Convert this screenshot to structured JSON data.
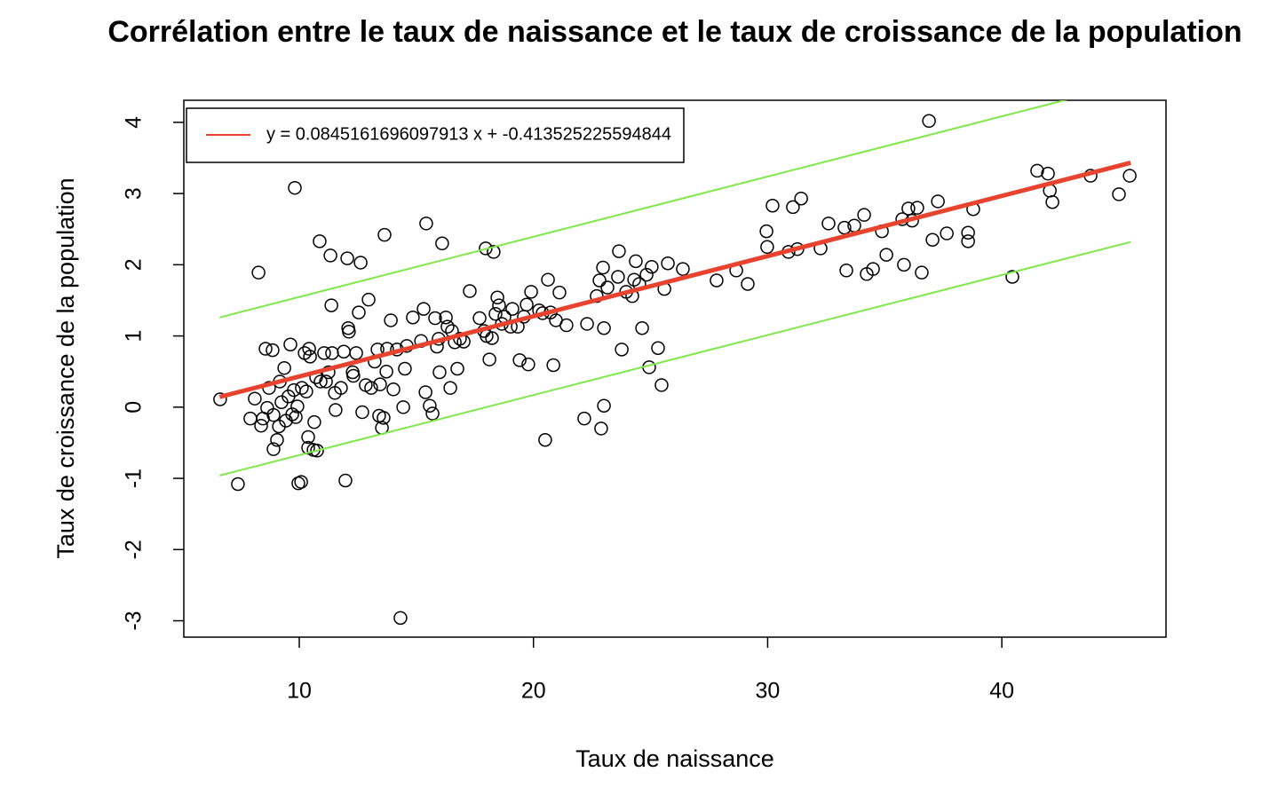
{
  "chart_data": {
    "type": "scatter",
    "title": "Corrélation entre le taux de naissance et le taux de croissance de la population",
    "xlabel": "Taux de naissance",
    "ylabel": "Taux de croissance de la population",
    "xlim": [
      5.07,
      47.01
    ],
    "ylim": [
      -3.23,
      4.31
    ],
    "xticks": [
      10,
      20,
      30,
      40
    ],
    "yticks": [
      -3,
      -2,
      -1,
      0,
      1,
      2,
      3,
      4
    ],
    "point_color": "#000000",
    "legend": "topleft",
    "x": [
      6.62,
      7.38,
      7.91,
      8.1,
      8.26,
      8.37,
      8.45,
      8.56,
      8.63,
      8.71,
      8.86,
      8.9,
      8.9,
      9.05,
      9.13,
      9.17,
      9.24,
      9.36,
      9.43,
      9.54,
      9.62,
      9.7,
      9.77,
      9.81,
      9.85,
      9.92,
      9.96,
      10.08,
      10.11,
      10.23,
      10.3,
      10.38,
      10.42,
      10.46,
      10.38,
      10.61,
      10.64,
      10.72,
      10.76,
      10.87,
      10.91,
      11.06,
      11.14,
      11.25,
      11.33,
      11.37,
      11.4,
      11.52,
      11.55,
      11.78,
      11.9,
      11.97,
      12.05,
      12.09,
      12.12,
      12.28,
      12.31,
      12.43,
      12.54,
      12.62,
      12.69,
      12.84,
      12.96,
      13.07,
      13.22,
      13.34,
      13.41,
      13.45,
      13.53,
      13.6,
      13.64,
      13.72,
      13.75,
      13.91,
      14.02,
      14.17,
      14.32,
      14.44,
      14.51,
      14.59,
      14.85,
      15.2,
      15.31,
      15.39,
      15.42,
      15.57,
      15.69,
      15.8,
      15.88,
      15.95,
      15.99,
      16.1,
      16.26,
      16.33,
      16.45,
      16.52,
      16.64,
      16.75,
      16.86,
      17.02,
      17.28,
      17.7,
      17.89,
      17.96,
      18.0,
      18.12,
      18.23,
      18.3,
      18.38,
      18.46,
      18.53,
      18.65,
      18.76,
      19.03,
      19.1,
      19.33,
      19.41,
      19.59,
      19.71,
      19.78,
      19.9,
      20.24,
      20.39,
      20.5,
      20.62,
      20.73,
      20.85,
      20.96,
      21.11,
      21.41,
      22.17,
      22.29,
      22.7,
      22.82,
      22.89,
      22.97,
      23.01,
      23.01,
      23.16,
      23.61,
      23.65,
      23.77,
      23.96,
      24.22,
      24.3,
      24.37,
      24.52,
      24.64,
      24.83,
      24.94,
      25.05,
      25.32,
      25.47,
      25.59,
      25.74,
      26.38,
      27.82,
      28.66,
      29.15,
      29.95,
      29.98,
      30.21,
      30.89,
      31.08,
      31.27,
      31.43,
      32.26,
      32.6,
      33.28,
      33.36,
      33.7,
      34.12,
      34.23,
      34.5,
      34.88,
      35.07,
      35.75,
      35.82,
      36.01,
      36.17,
      36.39,
      36.58,
      36.89,
      37.04,
      37.27,
      37.65,
      38.56,
      38.56,
      38.78,
      40.45,
      41.51,
      41.97,
      42.05,
      42.16,
      43.79,
      45.0,
      45.46
    ],
    "values": [
      0.11,
      -1.08,
      -0.16,
      0.12,
      1.89,
      -0.26,
      -0.16,
      0.82,
      -0.01,
      0.27,
      0.8,
      -0.59,
      -0.11,
      -0.46,
      -0.27,
      0.36,
      0.07,
      0.55,
      -0.19,
      0.15,
      0.88,
      -0.1,
      0.24,
      3.08,
      -0.14,
      0.01,
      -1.07,
      -1.05,
      0.27,
      0.76,
      0.22,
      -0.42,
      0.82,
      0.71,
      -0.57,
      -0.6,
      -0.21,
      0.42,
      -0.61,
      2.33,
      0.36,
      0.76,
      0.36,
      0.49,
      2.13,
      1.43,
      0.76,
      0.2,
      -0.04,
      0.27,
      0.78,
      -1.03,
      2.09,
      1.11,
      1.06,
      0.49,
      0.44,
      0.76,
      1.33,
      2.03,
      -0.07,
      0.31,
      1.51,
      0.27,
      0.64,
      0.81,
      -0.12,
      0.32,
      -0.29,
      -0.15,
      2.42,
      0.5,
      0.82,
      1.22,
      0.25,
      0.81,
      -2.96,
      0.0,
      0.54,
      0.86,
      1.26,
      0.93,
      1.38,
      0.21,
      2.58,
      0.02,
      -0.09,
      1.25,
      0.85,
      0.96,
      0.49,
      2.3,
      1.26,
      1.13,
      0.27,
      1.07,
      0.91,
      0.54,
      0.96,
      0.92,
      1.63,
      1.25,
      1.07,
      2.23,
      1.0,
      0.67,
      0.97,
      2.18,
      1.31,
      1.54,
      1.43,
      1.17,
      1.27,
      1.13,
      1.38,
      1.13,
      0.66,
      1.27,
      1.44,
      0.6,
      1.62,
      1.36,
      1.32,
      -0.46,
      1.79,
      1.33,
      0.59,
      1.22,
      1.61,
      1.15,
      -0.16,
      1.17,
      1.56,
      1.78,
      -0.3,
      1.96,
      1.11,
      0.02,
      1.68,
      1.83,
      2.19,
      0.81,
      1.62,
      1.56,
      1.79,
      2.05,
      1.73,
      1.11,
      1.86,
      0.56,
      1.97,
      0.83,
      0.31,
      1.66,
      2.02,
      1.94,
      1.78,
      1.92,
      1.73,
      2.47,
      2.25,
      2.83,
      2.18,
      2.81,
      2.22,
      2.93,
      2.23,
      2.58,
      2.52,
      1.92,
      2.55,
      2.7,
      1.87,
      1.94,
      2.47,
      2.14,
      2.64,
      2.0,
      2.79,
      2.62,
      2.8,
      1.89,
      4.02,
      2.35,
      2.89,
      2.44,
      2.33,
      2.45,
      2.78,
      1.83,
      3.32,
      3.28,
      3.04,
      2.88,
      3.25,
      2.99,
      3.25
    ],
    "lines": [
      {
        "name": "y =  0.0845161696097913 x +  -0.413525225594844",
        "color": "#e8432f",
        "x": [
          6.6,
          45.5
        ],
        "values": [
          0.144,
          3.432
        ],
        "width": 5
      },
      {
        "color": "#7fe84a",
        "x": [
          6.6,
          45.5
        ],
        "values": [
          1.26,
          4.55
        ],
        "width": 2
      },
      {
        "color": "#7fe84a",
        "x": [
          6.6,
          45.5
        ],
        "values": [
          -0.96,
          2.32
        ],
        "width": 2
      }
    ]
  }
}
